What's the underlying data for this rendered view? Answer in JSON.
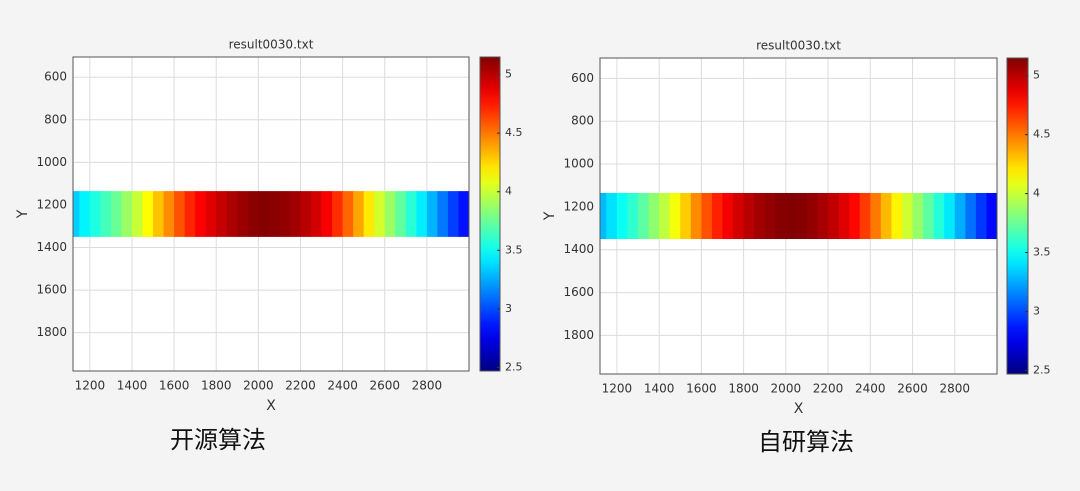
{
  "chart_data": [
    {
      "type": "heatmap-strip",
      "title": "result0030.txt",
      "x_label": "X",
      "y_label": "Y",
      "caption": "开源算法",
      "colormap": "jet",
      "grid": true,
      "y_reversed": true,
      "xlim": [
        1120,
        3000
      ],
      "xticks": [
        1200,
        1400,
        1600,
        1800,
        2000,
        2200,
        2400,
        2600,
        2800
      ],
      "ylim": [
        505,
        1980
      ],
      "yticks": [
        600,
        800,
        1000,
        1200,
        1400,
        1600,
        1800
      ],
      "clim": [
        2.47,
        5.15
      ],
      "cticks": [
        2.5,
        3,
        3.5,
        4,
        4.5,
        5
      ],
      "y_range": [
        1135,
        1350
      ],
      "x": [
        1125,
        1175,
        1225,
        1275,
        1325,
        1375,
        1425,
        1475,
        1525,
        1575,
        1625,
        1675,
        1725,
        1775,
        1825,
        1875,
        1925,
        1975,
        2025,
        2075,
        2125,
        2175,
        2225,
        2275,
        2325,
        2375,
        2425,
        2475,
        2525,
        2575,
        2625,
        2675,
        2725,
        2775,
        2825,
        2875,
        2925,
        2975
      ],
      "values": [
        3.35,
        3.45,
        3.55,
        3.65,
        3.75,
        3.88,
        4.0,
        4.15,
        4.3,
        4.45,
        4.6,
        4.72,
        4.82,
        4.9,
        4.97,
        5.03,
        5.08,
        5.12,
        5.13,
        5.12,
        5.1,
        5.06,
        5.0,
        4.93,
        4.83,
        4.7,
        4.55,
        4.38,
        4.2,
        4.03,
        3.88,
        3.73,
        3.58,
        3.43,
        3.28,
        3.12,
        2.97,
        2.85
      ]
    },
    {
      "type": "heatmap-strip",
      "title": "result0030.txt",
      "x_label": "X",
      "y_label": "Y",
      "caption": "自研算法",
      "colormap": "jet",
      "grid": true,
      "y_reversed": true,
      "xlim": [
        1120,
        3000
      ],
      "xticks": [
        1200,
        1400,
        1600,
        1800,
        2000,
        2200,
        2400,
        2600,
        2800
      ],
      "ylim": [
        505,
        1980
      ],
      "yticks": [
        600,
        800,
        1000,
        1200,
        1400,
        1600,
        1800
      ],
      "clim": [
        2.47,
        5.15
      ],
      "cticks": [
        2.5,
        3,
        3.5,
        4,
        4.5,
        5
      ],
      "y_range": [
        1135,
        1350
      ],
      "x": [
        1125,
        1175,
        1225,
        1275,
        1325,
        1375,
        1425,
        1475,
        1525,
        1575,
        1625,
        1675,
        1725,
        1775,
        1825,
        1875,
        1925,
        1975,
        2025,
        2075,
        2125,
        2175,
        2225,
        2275,
        2325,
        2375,
        2425,
        2475,
        2525,
        2575,
        2625,
        2675,
        2725,
        2775,
        2825,
        2875,
        2925,
        2975
      ],
      "values": [
        3.3,
        3.4,
        3.5,
        3.6,
        3.72,
        3.85,
        3.98,
        4.12,
        4.28,
        4.45,
        4.6,
        4.73,
        4.84,
        4.93,
        5.0,
        5.06,
        5.1,
        5.13,
        5.14,
        5.13,
        5.1,
        5.05,
        4.98,
        4.9,
        4.8,
        4.66,
        4.5,
        4.33,
        4.17,
        4.02,
        3.87,
        3.72,
        3.57,
        3.42,
        3.26,
        3.1,
        2.95,
        2.82
      ]
    }
  ]
}
